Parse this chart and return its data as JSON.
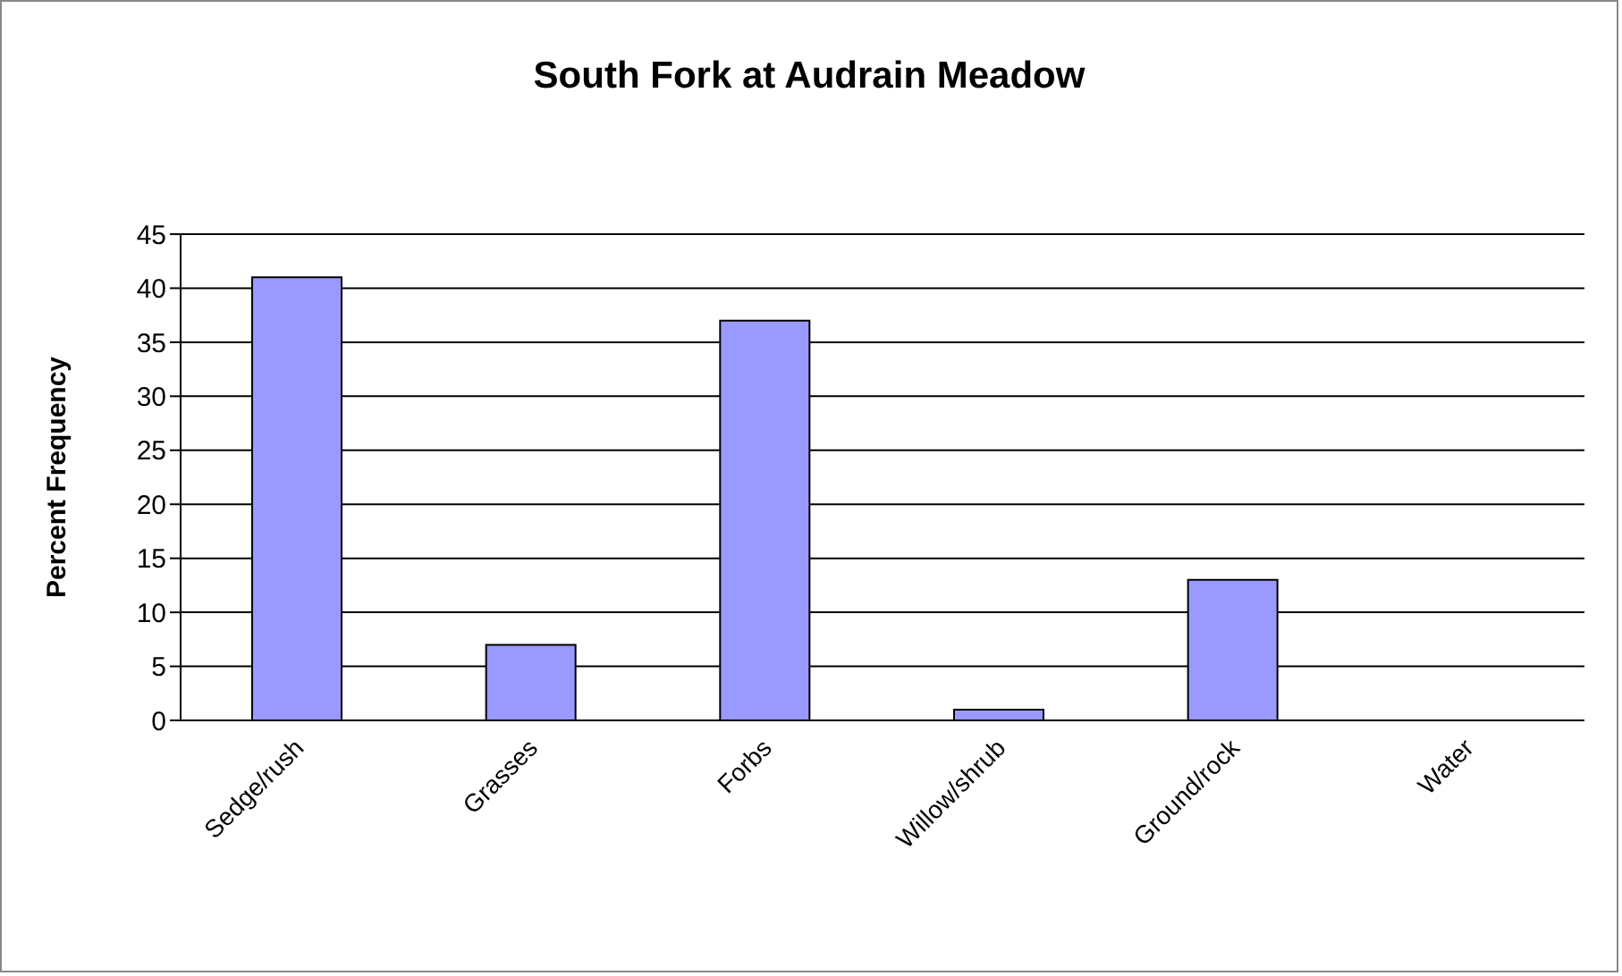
{
  "chart_data": {
    "type": "bar",
    "title": "South Fork at Audrain Meadow",
    "ylabel": "Percent Frequency",
    "categories": [
      "Sedge/rush",
      "Grasses",
      "Forbs",
      "Willow/shrub",
      "Ground/rock",
      "Water"
    ],
    "values": [
      41,
      7,
      37,
      1,
      13,
      0
    ],
    "color": "#9999ff",
    "ylim": [
      0,
      45
    ],
    "yticks": [
      0,
      5,
      10,
      15,
      20,
      25,
      30,
      35,
      40,
      45
    ],
    "grid": "y",
    "legend": false
  }
}
